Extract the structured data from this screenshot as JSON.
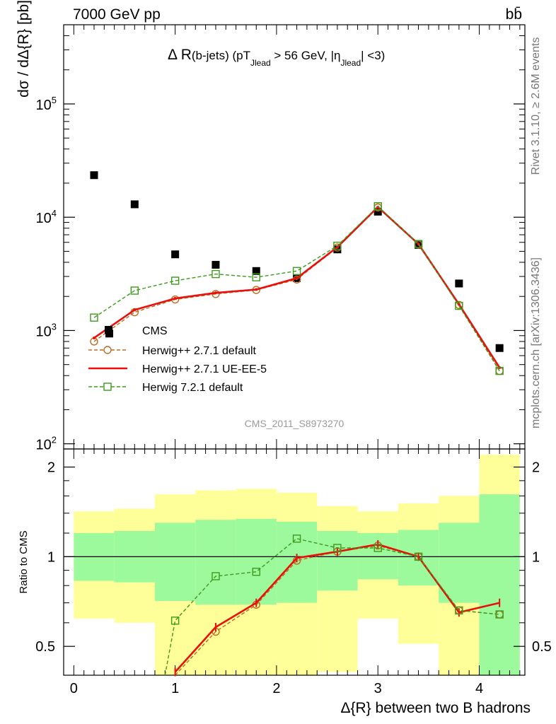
{
  "header": {
    "process": "7000 GeV pp",
    "final_state": "bb̄"
  },
  "side_labels": {
    "rivet": "Rivet 3.1.10, ≥ 2.6M events",
    "mcplots": "mcplots.cern.ch [arXiv:1306.3436]"
  },
  "analysis_id": "CMS_2011_S8973270",
  "chart_data": [
    {
      "type": "scatter",
      "title": "Δ R(b-jets) (pT_Jlead > 56 GeV, |η_Jlead| <3)",
      "title_parts": {
        "main": "Δ R",
        "paren": "(b-jets) (pT",
        "sub1": "Jlead",
        "mid": " >  56 GeV, |η",
        "sub2": "Jlead",
        "end": "| <3)"
      },
      "ylabel": "dσ / dΔ{R} [pb]",
      "yscale": "log",
      "ylim": [
        90,
        500000
      ],
      "xlim": [
        -0.1,
        4.45
      ],
      "y_ticks": [
        {
          "value": 100,
          "base": "10",
          "exp": "2"
        },
        {
          "value": 1000,
          "base": "10",
          "exp": "3"
        },
        {
          "value": 10000,
          "base": "10",
          "exp": "4"
        },
        {
          "value": 100000,
          "base": "10",
          "exp": "5"
        }
      ],
      "legend_position": "center-left",
      "x": [
        0.2,
        0.6,
        1.0,
        1.4,
        1.8,
        2.2,
        2.6,
        3.0,
        3.4,
        3.8,
        4.2
      ],
      "series": [
        {
          "name": "CMS",
          "color": "#000000",
          "marker": "filled-square",
          "x": [
            0.2,
            0.6,
            1.0,
            1.4,
            1.8,
            2.2,
            2.6,
            3.0,
            3.4,
            3.8,
            4.2
          ],
          "values": [
            23500,
            13000,
            4700,
            3800,
            3350,
            2900,
            5200,
            11200,
            5700,
            2600,
            700
          ],
          "extra_points": [
            {
              "x": 0.35,
              "y": 940
            }
          ]
        },
        {
          "name": "Herwig++ 2.7.1 default",
          "color": "#c06a20",
          "marker": "open-circle",
          "dash": "dashed",
          "x": [
            0.2,
            0.6,
            1.0,
            1.4,
            1.8,
            2.2,
            2.6,
            3.0,
            3.4,
            3.8,
            4.2
          ],
          "values": [
            800,
            1450,
            1880,
            2100,
            2280,
            2820,
            5400,
            12200,
            5750,
            1680,
            440
          ]
        },
        {
          "name": "Herwig++ 2.7.1 UE-EE-5",
          "color": "#e8100b",
          "marker": "none",
          "dash": "solid",
          "x": [
            0.2,
            0.6,
            1.0,
            1.4,
            1.8,
            2.2,
            2.6,
            3.0,
            3.4,
            3.8,
            4.2
          ],
          "values": [
            860,
            1520,
            1920,
            2150,
            2300,
            2900,
            5450,
            12300,
            5800,
            1700,
            470
          ]
        },
        {
          "name": "Herwig 7.2.1 default",
          "color": "#3c9b1c",
          "marker": "open-square",
          "dash": "dashed",
          "x": [
            0.2,
            0.6,
            1.0,
            1.4,
            1.8,
            2.2,
            2.6,
            3.0,
            3.4,
            3.8,
            4.2
          ],
          "values": [
            1300,
            2250,
            2750,
            3150,
            2950,
            3350,
            5600,
            12500,
            5800,
            1650,
            440
          ]
        }
      ]
    },
    {
      "type": "line",
      "ylabel": "Ratio to CMS",
      "xlabel": "Δ{R} between two B hadrons",
      "yscale": "log",
      "ylim": [
        0.4,
        2.3
      ],
      "xlim": [
        -0.1,
        4.45
      ],
      "x_ticks": [
        "0",
        "1",
        "2",
        "3",
        "4"
      ],
      "y_ticks": [
        "0.5",
        "1",
        "2"
      ],
      "bins": [
        [
          0.0,
          0.4
        ],
        [
          0.4,
          0.8
        ],
        [
          0.8,
          1.2
        ],
        [
          1.2,
          1.6
        ],
        [
          1.6,
          2.0
        ],
        [
          2.0,
          2.4
        ],
        [
          2.4,
          2.8
        ],
        [
          2.8,
          3.2
        ],
        [
          3.2,
          3.6
        ],
        [
          3.6,
          4.0
        ],
        [
          4.0,
          4.4
        ]
      ],
      "band_green": [
        [
          0.83,
          1.2
        ],
        [
          0.82,
          1.22
        ],
        [
          0.71,
          1.3
        ],
        [
          0.69,
          1.33
        ],
        [
          0.69,
          1.34
        ],
        [
          0.7,
          1.31
        ],
        [
          0.77,
          1.22
        ],
        [
          0.84,
          1.2
        ],
        [
          0.8,
          1.23
        ],
        [
          0.7,
          1.3
        ],
        [
          0.4,
          1.62
        ]
      ],
      "band_yellow": [
        [
          0.62,
          1.42
        ],
        [
          0.6,
          1.45
        ],
        [
          0.4,
          1.62
        ],
        [
          0.4,
          1.67
        ],
        [
          0.4,
          1.69
        ],
        [
          0.4,
          1.64
        ],
        [
          0.41,
          1.48
        ],
        [
          0.62,
          1.42
        ],
        [
          0.51,
          1.51
        ],
        [
          0.4,
          1.6
        ],
        [
          0.4,
          2.2
        ]
      ],
      "series": [
        {
          "name": "Herwig++ 2.7.1 default",
          "color": "#c06a20",
          "x": [
            1.0,
            1.4,
            1.8,
            2.2,
            2.6,
            3.0,
            3.4,
            3.8,
            4.2
          ],
          "values": [
            0.4,
            0.56,
            0.69,
            0.97,
            1.04,
            1.09,
            1.0,
            0.66,
            0.64
          ]
        },
        {
          "name": "Herwig++ 2.7.1 UE-EE-5",
          "color": "#e8100b",
          "x": [
            1.0,
            1.4,
            1.8,
            2.2,
            2.6,
            3.0,
            3.4,
            3.8,
            4.2
          ],
          "values": [
            0.41,
            0.58,
            0.7,
            0.99,
            1.04,
            1.1,
            1.0,
            0.65,
            0.7
          ]
        },
        {
          "name": "Herwig 7.2.1 default",
          "color": "#3c9b1c",
          "x": [
            0.9,
            1.0,
            1.4,
            1.8,
            2.2,
            2.6,
            3.0,
            3.4,
            3.8,
            4.2
          ],
          "values": [
            0.4,
            0.61,
            0.86,
            0.89,
            1.15,
            1.07,
            1.07,
            1.0,
            0.66,
            0.64
          ]
        }
      ]
    }
  ]
}
